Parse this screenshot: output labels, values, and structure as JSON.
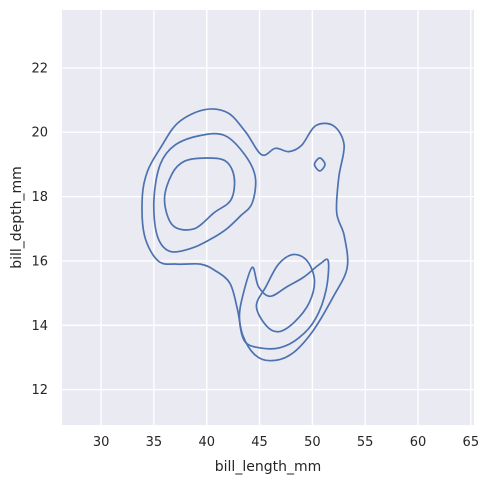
{
  "chart_data": {
    "type": "kde-contour",
    "xlabel": "bill_length_mm",
    "ylabel": "bill_depth_mm",
    "xlim": [
      26.3,
      65.3
    ],
    "ylim": [
      10.9,
      23.8
    ],
    "x_ticks": [
      30,
      35,
      40,
      45,
      50,
      55,
      60,
      65
    ],
    "y_ticks": [
      12,
      14,
      16,
      18,
      20,
      22
    ],
    "grid": true,
    "background_color": "#eaeaf2",
    "grid_color": "#ffffff",
    "line_color": "#4c72b0",
    "contours": [
      {
        "level": "outer",
        "points": [
          [
            33.9,
            18.0
          ],
          [
            34.1,
            16.8
          ],
          [
            35.4,
            16.0
          ],
          [
            37.2,
            15.9
          ],
          [
            39.4,
            15.9
          ],
          [
            40.8,
            15.7
          ],
          [
            42.2,
            15.3
          ],
          [
            42.9,
            14.5
          ],
          [
            43.4,
            13.7
          ],
          [
            44.5,
            13.1
          ],
          [
            46.0,
            12.9
          ],
          [
            48.0,
            13.1
          ],
          [
            50.0,
            13.8
          ],
          [
            52.0,
            14.9
          ],
          [
            53.3,
            15.8
          ],
          [
            53.0,
            16.8
          ],
          [
            52.3,
            17.5
          ],
          [
            52.5,
            18.6
          ],
          [
            53.0,
            19.6
          ],
          [
            52.0,
            20.2
          ],
          [
            50.3,
            20.2
          ],
          [
            49.0,
            19.6
          ],
          [
            47.8,
            19.4
          ],
          [
            46.5,
            19.5
          ],
          [
            45.2,
            19.3
          ],
          [
            43.7,
            20.0
          ],
          [
            42.0,
            20.6
          ],
          [
            39.8,
            20.7
          ],
          [
            37.3,
            20.3
          ],
          [
            35.6,
            19.5
          ],
          [
            34.4,
            18.8
          ],
          [
            33.9,
            18.0
          ]
        ]
      },
      {
        "level": "upper-mid",
        "points": [
          [
            35.0,
            17.9
          ],
          [
            35.3,
            16.8
          ],
          [
            36.5,
            16.3
          ],
          [
            38.6,
            16.4
          ],
          [
            40.5,
            16.7
          ],
          [
            41.9,
            17.0
          ],
          [
            43.2,
            17.4
          ],
          [
            44.3,
            17.8
          ],
          [
            44.6,
            18.6
          ],
          [
            43.6,
            19.3
          ],
          [
            41.7,
            19.9
          ],
          [
            39.4,
            19.9
          ],
          [
            37.0,
            19.6
          ],
          [
            35.6,
            19.0
          ],
          [
            35.0,
            17.9
          ]
        ]
      },
      {
        "level": "upper-inner",
        "points": [
          [
            36.0,
            17.9
          ],
          [
            36.8,
            17.1
          ],
          [
            38.8,
            17.0
          ],
          [
            40.7,
            17.5
          ],
          [
            42.3,
            17.9
          ],
          [
            42.6,
            18.6
          ],
          [
            41.8,
            19.1
          ],
          [
            40.0,
            19.2
          ],
          [
            37.9,
            19.1
          ],
          [
            36.7,
            18.7
          ],
          [
            36.0,
            17.9
          ]
        ]
      },
      {
        "level": "lower-mid",
        "points": [
          [
            44.3,
            15.8
          ],
          [
            44.9,
            15.2
          ],
          [
            46.0,
            14.9
          ],
          [
            47.6,
            15.2
          ],
          [
            49.2,
            15.5
          ],
          [
            50.7,
            15.9
          ],
          [
            51.5,
            16.0
          ],
          [
            51.3,
            15.1
          ],
          [
            50.3,
            14.2
          ],
          [
            48.7,
            13.6
          ],
          [
            46.9,
            13.3
          ],
          [
            45.0,
            13.3
          ],
          [
            43.6,
            13.5
          ],
          [
            43.1,
            14.2
          ],
          [
            43.4,
            14.9
          ],
          [
            44.3,
            15.8
          ]
        ]
      },
      {
        "level": "lower-inner",
        "points": [
          [
            44.7,
            14.6
          ],
          [
            45.6,
            14.0
          ],
          [
            46.8,
            13.8
          ],
          [
            48.3,
            14.1
          ],
          [
            49.7,
            14.7
          ],
          [
            50.2,
            15.4
          ],
          [
            49.5,
            16.0
          ],
          [
            48.2,
            16.2
          ],
          [
            46.8,
            15.9
          ],
          [
            45.6,
            15.2
          ],
          [
            44.7,
            14.6
          ]
        ]
      },
      {
        "level": "peak",
        "points": [
          [
            50.7,
            18.8
          ],
          [
            51.2,
            19.0
          ],
          [
            50.7,
            19.2
          ],
          [
            50.2,
            19.0
          ],
          [
            50.7,
            18.8
          ]
        ]
      }
    ]
  }
}
